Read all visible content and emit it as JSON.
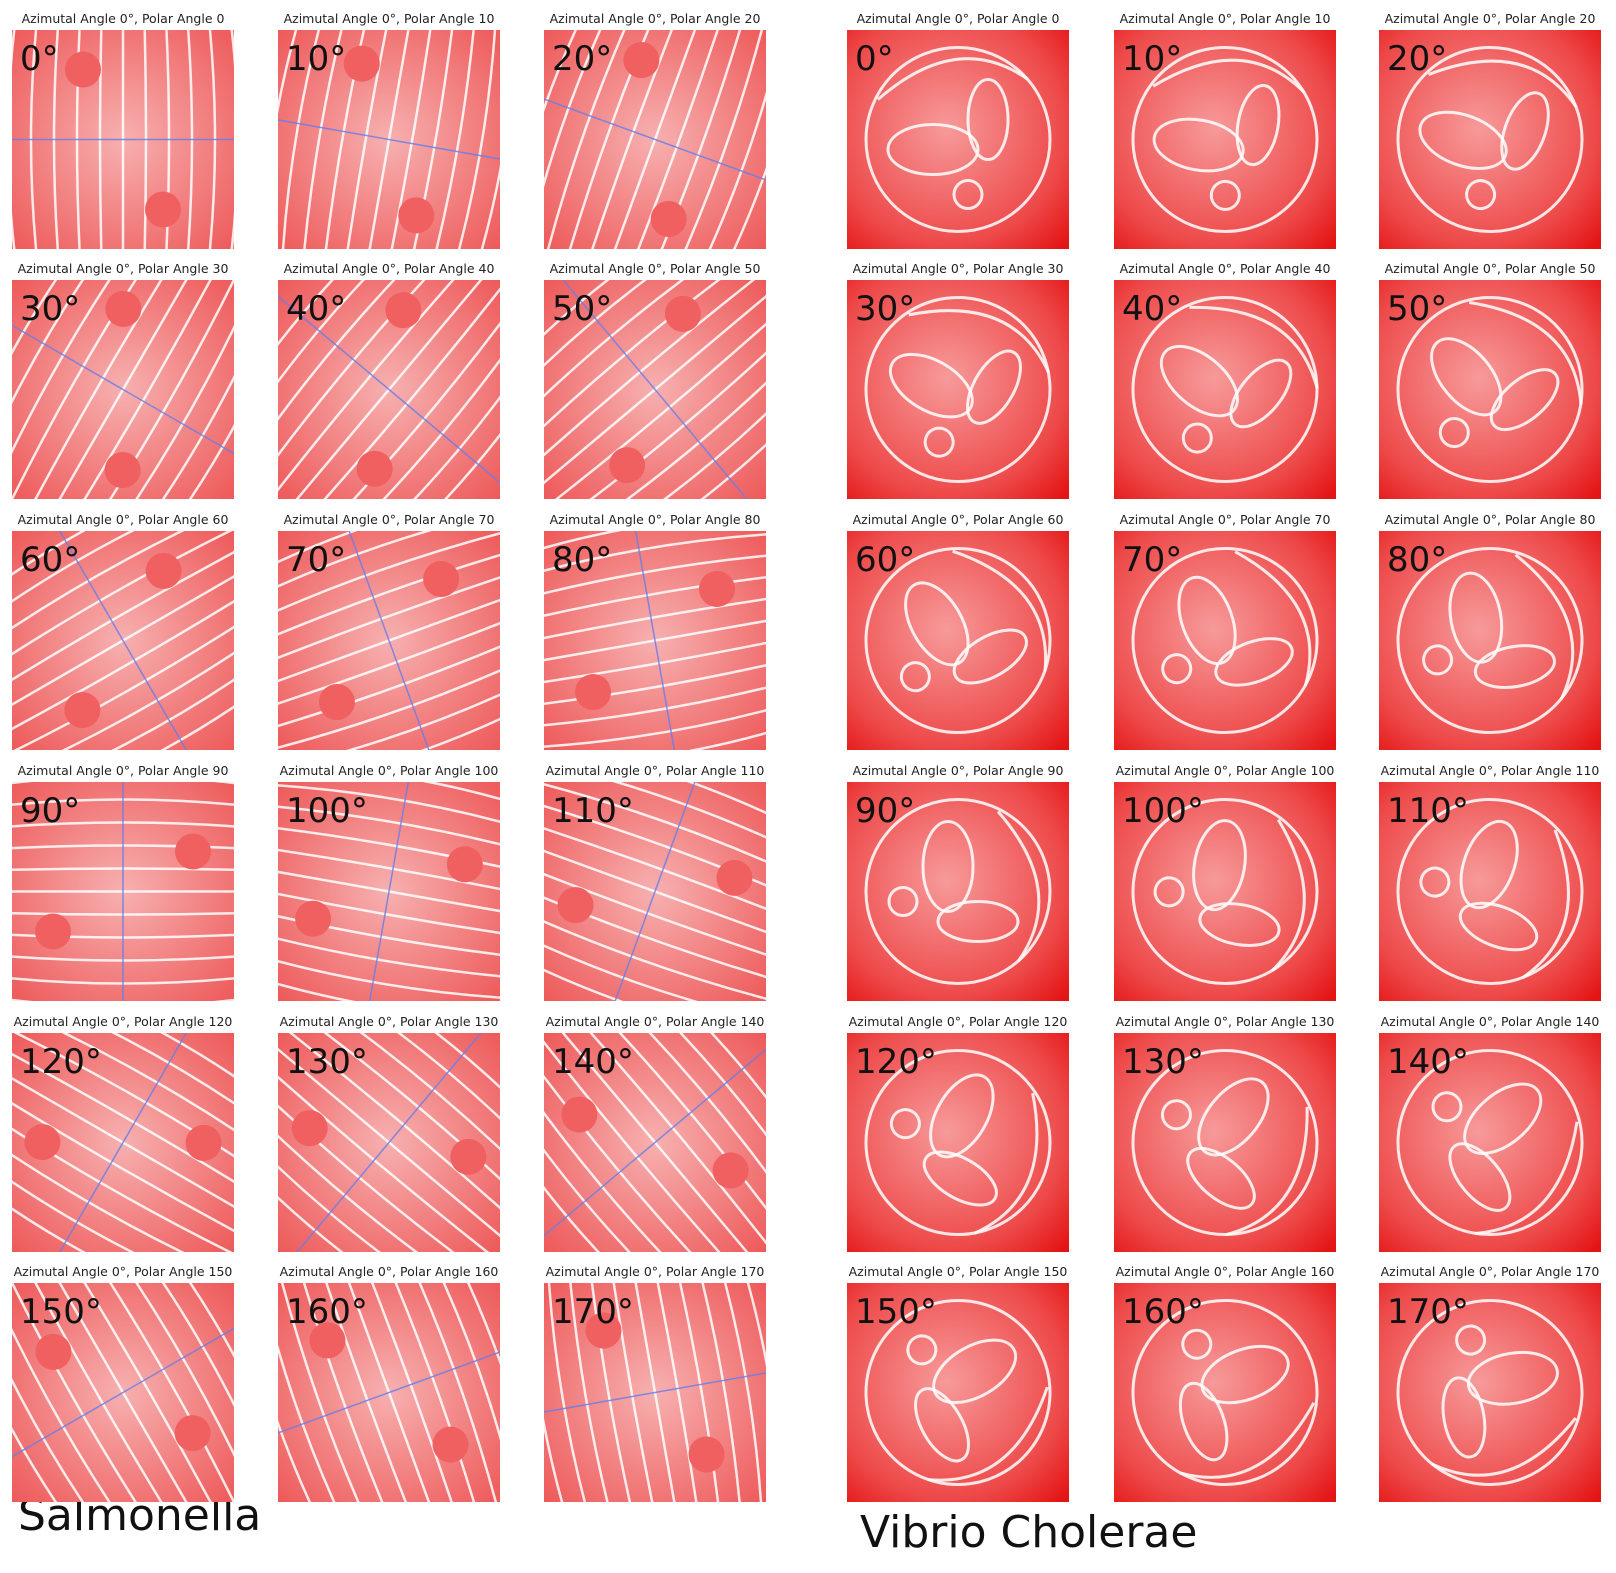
{
  "groups": [
    {
      "name": "Salmonella",
      "panels": [
        {
          "title": "Azimutal Angle 0°, Polar Angle 0",
          "label": "0°"
        },
        {
          "title": "Azimutal Angle 0°, Polar Angle 10",
          "label": "10°"
        },
        {
          "title": "Azimutal Angle 0°, Polar Angle 20",
          "label": "20°"
        },
        {
          "title": "Azimutal Angle 0°, Polar Angle 30",
          "label": "30°"
        },
        {
          "title": "Azimutal Angle 0°, Polar Angle 40",
          "label": "40°"
        },
        {
          "title": "Azimutal Angle 0°, Polar Angle 50",
          "label": "50°"
        },
        {
          "title": "Azimutal Angle 0°, Polar Angle 60",
          "label": "60°"
        },
        {
          "title": "Azimutal Angle 0°, Polar Angle 70",
          "label": "70°"
        },
        {
          "title": "Azimutal Angle 0°, Polar Angle 80",
          "label": "80°"
        },
        {
          "title": "Azimutal Angle 0°, Polar Angle 90",
          "label": "90°"
        },
        {
          "title": "Azimutal Angle 0°, Polar Angle 100",
          "label": "100°"
        },
        {
          "title": "Azimutal Angle 0°, Polar Angle 110",
          "label": "110°"
        },
        {
          "title": "Azimutal Angle 0°, Polar Angle 120",
          "label": "120°"
        },
        {
          "title": "Azimutal Angle 0°, Polar Angle 130",
          "label": "130°"
        },
        {
          "title": "Azimutal Angle 0°, Polar Angle 140",
          "label": "140°"
        },
        {
          "title": "Azimutal Angle 0°, Polar Angle 150",
          "label": "150°"
        },
        {
          "title": "Azimutal Angle 0°, Polar Angle 160",
          "label": "160°"
        },
        {
          "title": "Azimutal Angle 0°, Polar Angle 170",
          "label": "170°"
        }
      ]
    },
    {
      "name": "Vibrio Cholerae",
      "panels": [
        {
          "title": "Azimutal Angle 0°, Polar Angle 0",
          "label": "0°"
        },
        {
          "title": "Azimutal Angle 0°, Polar Angle 10",
          "label": "10°"
        },
        {
          "title": "Azimutal Angle 0°, Polar Angle 20",
          "label": "20°"
        },
        {
          "title": "Azimutal Angle 0°, Polar Angle 30",
          "label": "30°"
        },
        {
          "title": "Azimutal Angle 0°, Polar Angle 40",
          "label": "40°"
        },
        {
          "title": "Azimutal Angle 0°, Polar Angle 50",
          "label": "50°"
        },
        {
          "title": "Azimutal Angle 0°, Polar Angle 60",
          "label": "60°"
        },
        {
          "title": "Azimutal Angle 0°, Polar Angle 70",
          "label": "70°"
        },
        {
          "title": "Azimutal Angle 0°, Polar Angle 80",
          "label": "80°"
        },
        {
          "title": "Azimutal Angle 0°, Polar Angle 90",
          "label": "90°"
        },
        {
          "title": "Azimutal Angle 0°, Polar Angle 100",
          "label": "100°"
        },
        {
          "title": "Azimutal Angle 0°, Polar Angle 110",
          "label": "110°"
        },
        {
          "title": "Azimutal Angle 0°, Polar Angle 120",
          "label": "120°"
        },
        {
          "title": "Azimutal Angle 0°, Polar Angle 130",
          "label": "130°"
        },
        {
          "title": "Azimutal Angle 0°, Polar Angle 140",
          "label": "140°"
        },
        {
          "title": "Azimutal Angle 0°, Polar Angle 150",
          "label": "150°"
        },
        {
          "title": "Azimutal Angle 0°, Polar Angle 160",
          "label": "160°"
        },
        {
          "title": "Azimutal Angle 0°, Polar Angle 170",
          "label": "170°"
        }
      ]
    }
  ]
}
